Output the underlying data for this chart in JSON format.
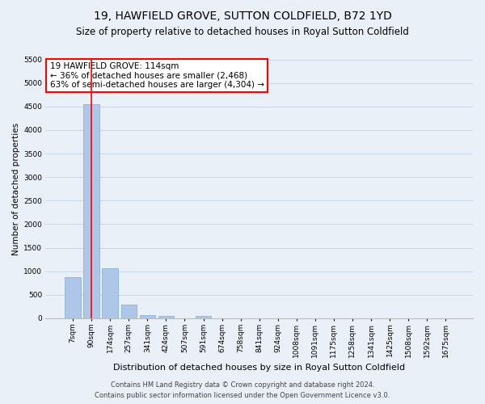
{
  "title": "19, HAWFIELD GROVE, SUTTON COLDFIELD, B72 1YD",
  "subtitle": "Size of property relative to detached houses in Royal Sutton Coldfield",
  "xlabel": "Distribution of detached houses by size in Royal Sutton Coldfield",
  "ylabel": "Number of detached properties",
  "footer_line1": "Contains HM Land Registry data © Crown copyright and database right 2024.",
  "footer_line2": "Contains public sector information licensed under the Open Government Licence v3.0.",
  "categories": [
    "7sqm",
    "90sqm",
    "174sqm",
    "257sqm",
    "341sqm",
    "424sqm",
    "507sqm",
    "591sqm",
    "674sqm",
    "758sqm",
    "841sqm",
    "924sqm",
    "1008sqm",
    "1091sqm",
    "1175sqm",
    "1258sqm",
    "1341sqm",
    "1425sqm",
    "1508sqm",
    "1592sqm",
    "1675sqm"
  ],
  "values": [
    880,
    4540,
    1060,
    295,
    65,
    55,
    0,
    55,
    0,
    0,
    0,
    0,
    0,
    0,
    0,
    0,
    0,
    0,
    0,
    0,
    0
  ],
  "bar_color": "#aec6e8",
  "bar_edge_color": "#7aadd4",
  "annotation_line1": "19 HAWFIELD GROVE: 114sqm",
  "annotation_line2": "← 36% of detached houses are smaller (2,468)",
  "annotation_line3": "63% of semi-detached houses are larger (4,304) →",
  "annotation_box_color": "white",
  "annotation_box_edge_color": "red",
  "vline_x": 1,
  "vline_color": "red",
  "ylim": [
    0,
    5500
  ],
  "yticks": [
    0,
    500,
    1000,
    1500,
    2000,
    2500,
    3000,
    3500,
    4000,
    4500,
    5000,
    5500
  ],
  "grid_color": "#c8d8e8",
  "background_color": "#eaf0f8",
  "title_fontsize": 10,
  "subtitle_fontsize": 8.5,
  "xlabel_fontsize": 8,
  "ylabel_fontsize": 7.5,
  "tick_fontsize": 6.5,
  "annotation_fontsize": 7.5,
  "footer_fontsize": 6
}
